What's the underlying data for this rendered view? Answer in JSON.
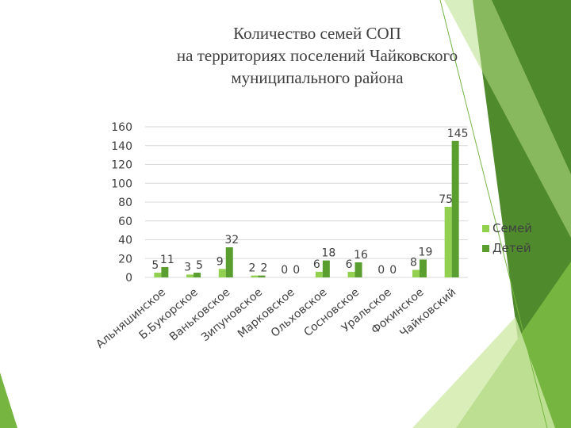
{
  "title_lines": [
    "Количество семей СОП",
    "на территориях поселений Чайковского",
    "муниципального района"
  ],
  "colors": {
    "series_families": "#92d050",
    "series_children": "#5a9e2f",
    "axis_text": "#404040",
    "grid": "#d9d9d9",
    "decor_dark": "#4f8a2c",
    "decor_mid": "#76b53f",
    "decor_light": "#b9e08a"
  },
  "chart_data": {
    "type": "bar",
    "title": "",
    "xlabel": "",
    "ylabel": "",
    "ylim": [
      0,
      160
    ],
    "yticks": [
      0,
      20,
      40,
      60,
      80,
      100,
      120,
      140,
      160
    ],
    "grid": true,
    "legend_position": "right",
    "categories": [
      "Альняшинское",
      "Б.Букорское",
      "Ваньковское",
      "Зипуновское",
      "Марковское",
      "Ольховское",
      "Сосновское",
      "Уральское",
      "Фокинское",
      "Чайковский"
    ],
    "series": [
      {
        "name": "Семей",
        "values": [
          5,
          3,
          9,
          2,
          0,
          6,
          6,
          0,
          8,
          75
        ]
      },
      {
        "name": "Детей",
        "values": [
          11,
          5,
          32,
          2,
          0,
          18,
          16,
          0,
          19,
          145
        ]
      }
    ]
  }
}
